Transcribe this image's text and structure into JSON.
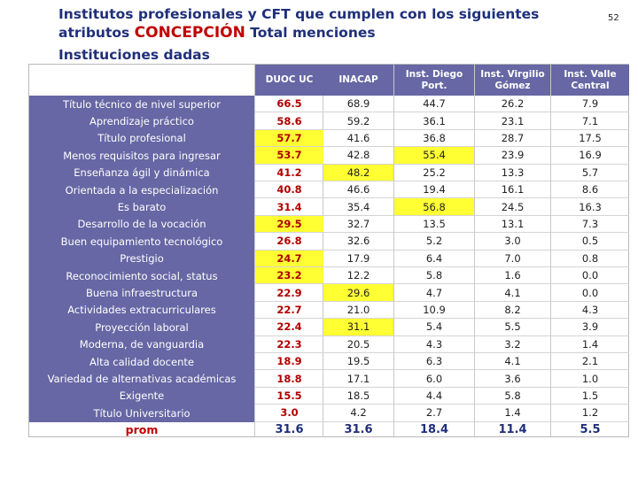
{
  "title": {
    "line1": "Institutos profesionales  y CFT que cumplen con los siguientes",
    "line2_prefix": "atributos ",
    "line2_highlight": "CONCEPCIÓN",
    "line2_suffix": " Total menciones"
  },
  "subtitle": "Instituciones dadas",
  "page_number": "52",
  "colors": {
    "header_bg": "#6667a4",
    "title_blue": "#1f2f7a",
    "highlight_red": "#c00000",
    "cell_highlight": "#ffff33"
  },
  "table": {
    "columns": [
      {
        "label": "DUOC UC"
      },
      {
        "label": "INACAP"
      },
      {
        "label": "Inst. Diego Port."
      },
      {
        "label": "Inst. Virgilio Gómez"
      },
      {
        "label": "Inst. Valle Central"
      }
    ],
    "rows": [
      {
        "label": "Título técnico de nivel superior",
        "values": [
          "66.5",
          "68.9",
          "44.7",
          "26.2",
          "7.9"
        ],
        "highlight": []
      },
      {
        "label": "Aprendizaje práctico",
        "values": [
          "58.6",
          "59.2",
          "36.1",
          "23.1",
          "7.1"
        ],
        "highlight": []
      },
      {
        "label": "Título profesional",
        "values": [
          "57.7",
          "41.6",
          "36.8",
          "28.7",
          "17.5"
        ],
        "highlight": [
          0
        ]
      },
      {
        "label": "Menos requisitos para ingresar",
        "values": [
          "53.7",
          "42.8",
          "55.4",
          "23.9",
          "16.9"
        ],
        "highlight": [
          0,
          2
        ]
      },
      {
        "label": "Enseñanza ágil y dinámica",
        "values": [
          "41.2",
          "48.2",
          "25.2",
          "13.3",
          "5.7"
        ],
        "highlight": [
          1
        ]
      },
      {
        "label": "Orientada a la especialización",
        "values": [
          "40.8",
          "46.6",
          "19.4",
          "16.1",
          "8.6"
        ],
        "highlight": []
      },
      {
        "label": "Es barato",
        "values": [
          "31.4",
          "35.4",
          "56.8",
          "24.5",
          "16.3"
        ],
        "highlight": [
          2
        ]
      },
      {
        "label": "Desarrollo de la vocación",
        "values": [
          "29.5",
          "32.7",
          "13.5",
          "13.1",
          "7.3"
        ],
        "highlight": [
          0
        ]
      },
      {
        "label": "Buen equipamiento tecnológico",
        "values": [
          "26.8",
          "32.6",
          "5.2",
          "3.0",
          "0.5"
        ],
        "highlight": []
      },
      {
        "label": "Prestigio",
        "values": [
          "24.7",
          "17.9",
          "6.4",
          "7.0",
          "0.8"
        ],
        "highlight": [
          0
        ]
      },
      {
        "label": "Reconocimiento social, status",
        "values": [
          "23.2",
          "12.2",
          "5.8",
          "1.6",
          "0.0"
        ],
        "highlight": [
          0
        ]
      },
      {
        "label": "Buena infraestructura",
        "values": [
          "22.9",
          "29.6",
          "4.7",
          "4.1",
          "0.0"
        ],
        "highlight": [
          1
        ]
      },
      {
        "label": "Actividades extracurriculares",
        "values": [
          "22.7",
          "21.0",
          "10.9",
          "8.2",
          "4.3"
        ],
        "highlight": []
      },
      {
        "label": "Proyección laboral",
        "values": [
          "22.4",
          "31.1",
          "5.4",
          "5.5",
          "3.9"
        ],
        "highlight": [
          1
        ]
      },
      {
        "label": "Moderna, de vanguardia",
        "values": [
          "22.3",
          "20.5",
          "4.3",
          "3.2",
          "1.4"
        ],
        "highlight": []
      },
      {
        "label": "Alta calidad docente",
        "values": [
          "18.9",
          "19.5",
          "6.3",
          "4.1",
          "2.1"
        ],
        "highlight": []
      },
      {
        "label": "Variedad de alternativas académicas",
        "values": [
          "18.8",
          "17.1",
          "6.0",
          "3.6",
          "1.0"
        ],
        "highlight": []
      },
      {
        "label": "Exigente",
        "values": [
          "15.5",
          "18.5",
          "4.4",
          "5.8",
          "1.5"
        ],
        "highlight": []
      },
      {
        "label": "Título Universitario",
        "values": [
          "3.0",
          "4.2",
          "2.7",
          "1.4",
          "1.2"
        ],
        "highlight": []
      }
    ],
    "prom": {
      "label": "prom",
      "values": [
        "31.6",
        "31.6",
        "18.4",
        "11.4",
        "5.5"
      ]
    }
  }
}
